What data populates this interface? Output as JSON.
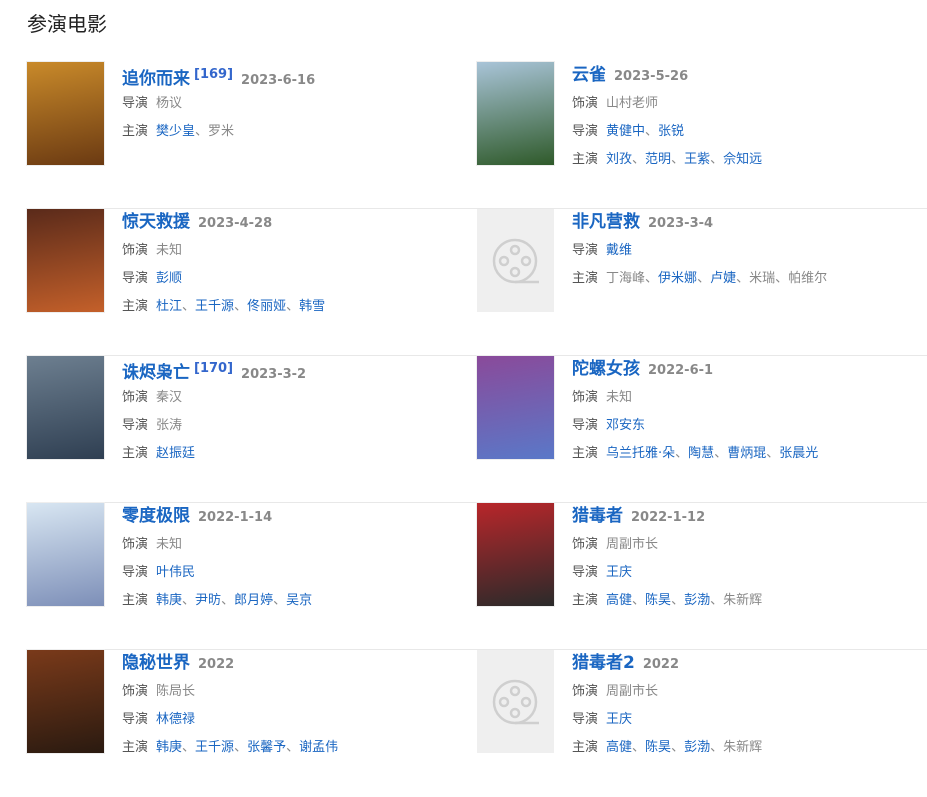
{
  "section_title": "参演电影",
  "colors": {
    "link": "#1a66c2",
    "muted": "#888888"
  },
  "movies": [
    {
      "title": "追你而来",
      "ref": "[169]",
      "date": "2023-6-16",
      "poster": "image",
      "poster_colors": [
        "#c98a2a",
        "#6b3a12"
      ],
      "lines": [
        {
          "label": "导演",
          "names": [
            {
              "text": "杨议",
              "link": false
            }
          ]
        },
        {
          "label": "主演",
          "names": [
            {
              "text": "樊少皇",
              "link": true
            },
            {
              "text": "罗米",
              "link": false
            }
          ]
        }
      ]
    },
    {
      "title": "云雀",
      "date": "2023-5-26",
      "poster": "image",
      "poster_colors": [
        "#a9c4d8",
        "#2f5a2a"
      ],
      "lines": [
        {
          "label": "饰演",
          "names": [
            {
              "text": "山村老师",
              "link": false
            }
          ]
        },
        {
          "label": "导演",
          "names": [
            {
              "text": "黄健中",
              "link": true
            },
            {
              "text": "张锐",
              "link": true
            }
          ]
        },
        {
          "label": "主演",
          "names": [
            {
              "text": "刘孜",
              "link": true
            },
            {
              "text": "范明",
              "link": true
            },
            {
              "text": "王紫",
              "link": true
            },
            {
              "text": "佘知远",
              "link": true
            }
          ]
        }
      ]
    },
    {
      "title": "惊天救援",
      "date": "2023-4-28",
      "poster": "image",
      "poster_colors": [
        "#5a2a1a",
        "#c4602a"
      ],
      "lines": [
        {
          "label": "饰演",
          "names": [
            {
              "text": "未知",
              "link": false
            }
          ]
        },
        {
          "label": "导演",
          "names": [
            {
              "text": "彭顺",
              "link": true
            }
          ]
        },
        {
          "label": "主演",
          "names": [
            {
              "text": "杜江",
              "link": true
            },
            {
              "text": "王千源",
              "link": true
            },
            {
              "text": "佟丽娅",
              "link": true
            },
            {
              "text": "韩雪",
              "link": true
            }
          ]
        }
      ]
    },
    {
      "title": "非凡营救",
      "date": "2023-3-4",
      "poster": "placeholder",
      "lines": [
        {
          "label": "导演",
          "names": [
            {
              "text": "戴维",
              "link": true
            }
          ]
        },
        {
          "label": "主演",
          "names": [
            {
              "text": "丁海峰",
              "link": false
            },
            {
              "text": "伊米娜",
              "link": true
            },
            {
              "text": "卢婕",
              "link": true
            },
            {
              "text": "米瑞",
              "link": false
            },
            {
              "text": "帕维尔",
              "link": false
            }
          ]
        }
      ]
    },
    {
      "title": "诛烬枭亡",
      "ref": "[170]",
      "date": "2023-3-2",
      "poster": "image",
      "poster_colors": [
        "#6d7f90",
        "#2f3f52"
      ],
      "lines": [
        {
          "label": "饰演",
          "names": [
            {
              "text": "秦汉",
              "link": false
            }
          ]
        },
        {
          "label": "导演",
          "names": [
            {
              "text": "张涛",
              "link": false
            }
          ]
        },
        {
          "label": "主演",
          "names": [
            {
              "text": "赵振廷",
              "link": true
            }
          ]
        }
      ]
    },
    {
      "title": "陀螺女孩",
      "date": "2022-6-1",
      "poster": "image",
      "poster_colors": [
        "#8a4a9a",
        "#5a78c8"
      ],
      "lines": [
        {
          "label": "饰演",
          "names": [
            {
              "text": "未知",
              "link": false
            }
          ]
        },
        {
          "label": "导演",
          "names": [
            {
              "text": "邓安东",
              "link": true
            }
          ]
        },
        {
          "label": "主演",
          "names": [
            {
              "text": "乌兰托雅·朵",
              "link": true
            },
            {
              "text": "陶慧",
              "link": true
            },
            {
              "text": "曹炳琨",
              "link": true
            },
            {
              "text": "张晨光",
              "link": true
            }
          ]
        }
      ]
    },
    {
      "title": "零度极限",
      "date": "2022-1-14",
      "poster": "image",
      "poster_colors": [
        "#d8e6f2",
        "#7d8fb8"
      ],
      "lines": [
        {
          "label": "饰演",
          "names": [
            {
              "text": "未知",
              "link": false
            }
          ]
        },
        {
          "label": "导演",
          "names": [
            {
              "text": "叶伟民",
              "link": true
            }
          ]
        },
        {
          "label": "主演",
          "names": [
            {
              "text": "韩庚",
              "link": true
            },
            {
              "text": "尹昉",
              "link": true
            },
            {
              "text": "郎月婷",
              "link": true
            },
            {
              "text": "吴京",
              "link": true
            }
          ]
        }
      ]
    },
    {
      "title": "猎毒者",
      "date": "2022-1-12",
      "poster": "image",
      "poster_colors": [
        "#b8262a",
        "#2a2a2a"
      ],
      "lines": [
        {
          "label": "饰演",
          "names": [
            {
              "text": "周副市长",
              "link": false
            }
          ]
        },
        {
          "label": "导演",
          "names": [
            {
              "text": "王庆",
              "link": true
            }
          ]
        },
        {
          "label": "主演",
          "names": [
            {
              "text": "高健",
              "link": true
            },
            {
              "text": "陈昊",
              "link": true
            },
            {
              "text": "彭渤",
              "link": true
            },
            {
              "text": "朱新辉",
              "link": false
            }
          ]
        }
      ]
    },
    {
      "title": "隐秘世界",
      "date": "2022",
      "poster": "image",
      "poster_colors": [
        "#7a3a1a",
        "#2a1a10"
      ],
      "lines": [
        {
          "label": "饰演",
          "names": [
            {
              "text": "陈局长",
              "link": false
            }
          ]
        },
        {
          "label": "导演",
          "names": [
            {
              "text": "林德禄",
              "link": true
            }
          ]
        },
        {
          "label": "主演",
          "names": [
            {
              "text": "韩庚",
              "link": true
            },
            {
              "text": "王千源",
              "link": true
            },
            {
              "text": "张馨予",
              "link": true
            },
            {
              "text": "谢孟伟",
              "link": true
            }
          ]
        }
      ]
    },
    {
      "title": "猎毒者2",
      "date": "2022",
      "poster": "placeholder",
      "lines": [
        {
          "label": "饰演",
          "names": [
            {
              "text": "周副市长",
              "link": false
            }
          ]
        },
        {
          "label": "导演",
          "names": [
            {
              "text": "王庆",
              "link": true
            }
          ]
        },
        {
          "label": "主演",
          "names": [
            {
              "text": "高健",
              "link": true
            },
            {
              "text": "陈昊",
              "link": true
            },
            {
              "text": "彭渤",
              "link": true
            },
            {
              "text": "朱新辉",
              "link": false
            }
          ]
        }
      ]
    }
  ]
}
